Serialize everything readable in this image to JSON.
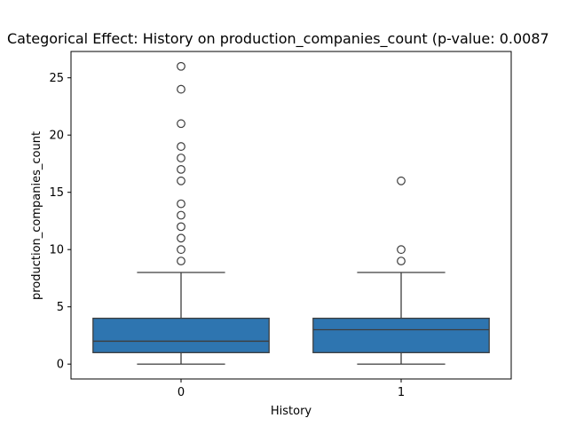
{
  "chart_data": {
    "type": "box",
    "title": "Categorical Effect: History on production_companies_count (p-value: 0.0087",
    "xlabel": "History",
    "ylabel": "production_companies_count",
    "categories": [
      "0",
      "1"
    ],
    "ylim": [
      -1.3,
      27.3
    ],
    "y_ticks": [
      0,
      5,
      10,
      15,
      20,
      25
    ],
    "grid": false,
    "box_color": "#2e75b0",
    "groups": [
      {
        "category": "0",
        "whisker_low": 0,
        "q1": 1,
        "median": 2,
        "q3": 4,
        "whisker_high": 8,
        "outliers": [
          9,
          10,
          11,
          12,
          13,
          14,
          16,
          17,
          18,
          19,
          21,
          24,
          26
        ]
      },
      {
        "category": "1",
        "whisker_low": 0,
        "q1": 1,
        "median": 3,
        "q3": 4,
        "whisker_high": 8,
        "outliers": [
          9,
          10,
          16
        ]
      }
    ]
  }
}
